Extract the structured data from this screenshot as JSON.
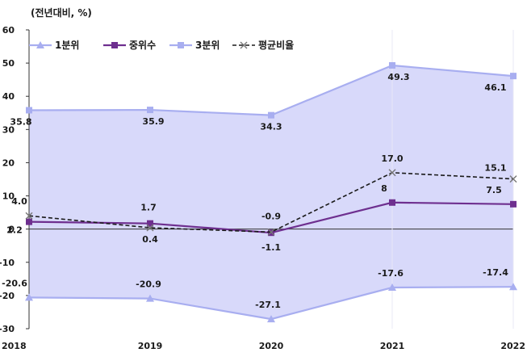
{
  "chart_data": {
    "type": "line",
    "unit_label": "(전년대비, %)",
    "categories": [
      "2018",
      "2019",
      "2020",
      "2021",
      "2022"
    ],
    "ylim": [
      -30,
      60
    ],
    "yticks": [
      60,
      50,
      40,
      30,
      20,
      10,
      0,
      -10,
      -20,
      -30
    ],
    "grid": false,
    "legend_position": "top-left",
    "series": [
      {
        "name": "1분위",
        "values": [
          -20.6,
          -20.9,
          -27.1,
          -17.6,
          -17.4
        ],
        "labels": [
          "-20.6",
          "-20.9",
          "-27.1",
          "-17.6",
          "-17.4"
        ],
        "color": "#a8aef0",
        "marker": "triangle"
      },
      {
        "name": "중위수",
        "values": [
          2.2,
          1.7,
          -1.1,
          8,
          7.5
        ],
        "labels": [
          "2.2",
          "1.7",
          "-1.1",
          "8",
          "7.5"
        ],
        "color": "#6e2f8f",
        "marker": "square"
      },
      {
        "name": "3분위",
        "values": [
          35.8,
          35.9,
          34.3,
          49.3,
          46.1
        ],
        "labels": [
          "35.8",
          "35.9",
          "34.3",
          "49.3",
          "46.1"
        ],
        "color": "#a8aef0",
        "marker": "square"
      },
      {
        "name": "평균비율",
        "values": [
          4.0,
          0.4,
          -0.9,
          17.0,
          15.1
        ],
        "labels": [
          "4.0",
          "0.4",
          "-0.9",
          "17.0",
          "15.1"
        ],
        "color": "#1a1a1a",
        "marker": "x",
        "dash": true
      }
    ],
    "band_fill": "#d8d9fa",
    "band_color": "#c9cbf6"
  }
}
